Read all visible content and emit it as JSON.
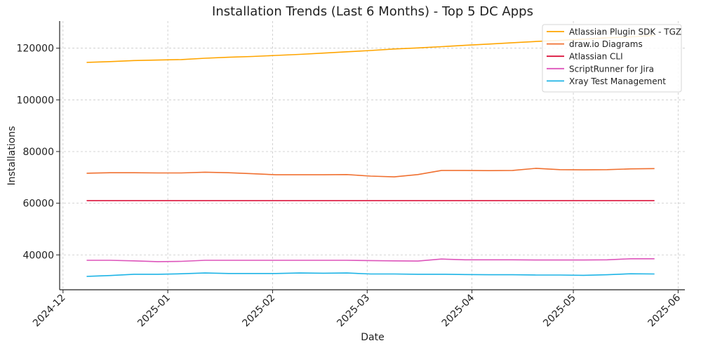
{
  "chart_data": {
    "type": "line",
    "title": "Installation Trends (Last 6 Months) - Top 5 DC Apps",
    "xlabel": "Date",
    "ylabel": "Installations",
    "xlim": [
      "2024-11-30",
      "2025-06-03"
    ],
    "ylim": [
      26500,
      130500
    ],
    "yticks": [
      40000,
      60000,
      80000,
      100000,
      120000
    ],
    "xticks": [
      "2024-12-01",
      "2025-01-01",
      "2025-02-01",
      "2025-03-01",
      "2025-04-01",
      "2025-05-01",
      "2025-06-01"
    ],
    "xtick_labels": [
      "2024-12",
      "2025-01",
      "2025-02",
      "2025-03",
      "2025-04",
      "2025-05",
      "2025-06"
    ],
    "grid": true,
    "legend_position": "top-right",
    "x": [
      "2024-12-08",
      "2024-12-15",
      "2024-12-22",
      "2024-12-29",
      "2025-01-05",
      "2025-01-12",
      "2025-01-19",
      "2025-01-26",
      "2025-02-02",
      "2025-02-09",
      "2025-02-16",
      "2025-02-23",
      "2025-03-02",
      "2025-03-09",
      "2025-03-16",
      "2025-03-23",
      "2025-03-30",
      "2025-04-06",
      "2025-04-13",
      "2025-04-20",
      "2025-04-27",
      "2025-05-04",
      "2025-05-11",
      "2025-05-18",
      "2025-05-25"
    ],
    "series": [
      {
        "name": "Atlassian Plugin SDK - TGZ",
        "color": "#ffa500",
        "values": [
          114500,
          114800,
          115200,
          115400,
          115600,
          116100,
          116500,
          116800,
          117200,
          117600,
          118100,
          118600,
          119100,
          119700,
          120100,
          120600,
          121100,
          121600,
          122100,
          122600,
          123000,
          123500,
          124000,
          124400,
          124900
        ]
      },
      {
        "name": "draw.io Diagrams",
        "color": "#f07030",
        "values": [
          71600,
          71800,
          71800,
          71700,
          71700,
          72000,
          71800,
          71400,
          71000,
          71000,
          71000,
          71100,
          70500,
          70200,
          71100,
          72700,
          72700,
          72600,
          72700,
          73500,
          73000,
          72900,
          73000,
          73300,
          73400
        ]
      },
      {
        "name": "Atlassian CLI",
        "color": "#dc143c",
        "values": [
          61000,
          61000,
          61000,
          61000,
          61000,
          61000,
          61000,
          61000,
          61000,
          61000,
          61000,
          61000,
          61000,
          61000,
          61000,
          61000,
          61000,
          61000,
          61000,
          61000,
          61000,
          61000,
          61000,
          61000,
          61000
        ]
      },
      {
        "name": "ScriptRunner for Jira",
        "color": "#dd55bb",
        "values": [
          37900,
          37900,
          37700,
          37400,
          37500,
          37900,
          37900,
          37900,
          37900,
          37900,
          37900,
          37900,
          37800,
          37700,
          37600,
          38400,
          38100,
          38100,
          38100,
          38000,
          38000,
          38000,
          38100,
          38500,
          38500
        ]
      },
      {
        "name": "Xray Test Management",
        "color": "#1eb4e6",
        "values": [
          31700,
          32000,
          32500,
          32500,
          32700,
          33000,
          32800,
          32800,
          32800,
          33000,
          32900,
          33000,
          32600,
          32600,
          32500,
          32500,
          32400,
          32300,
          32300,
          32200,
          32200,
          32100,
          32300,
          32700,
          32600
        ]
      }
    ]
  }
}
